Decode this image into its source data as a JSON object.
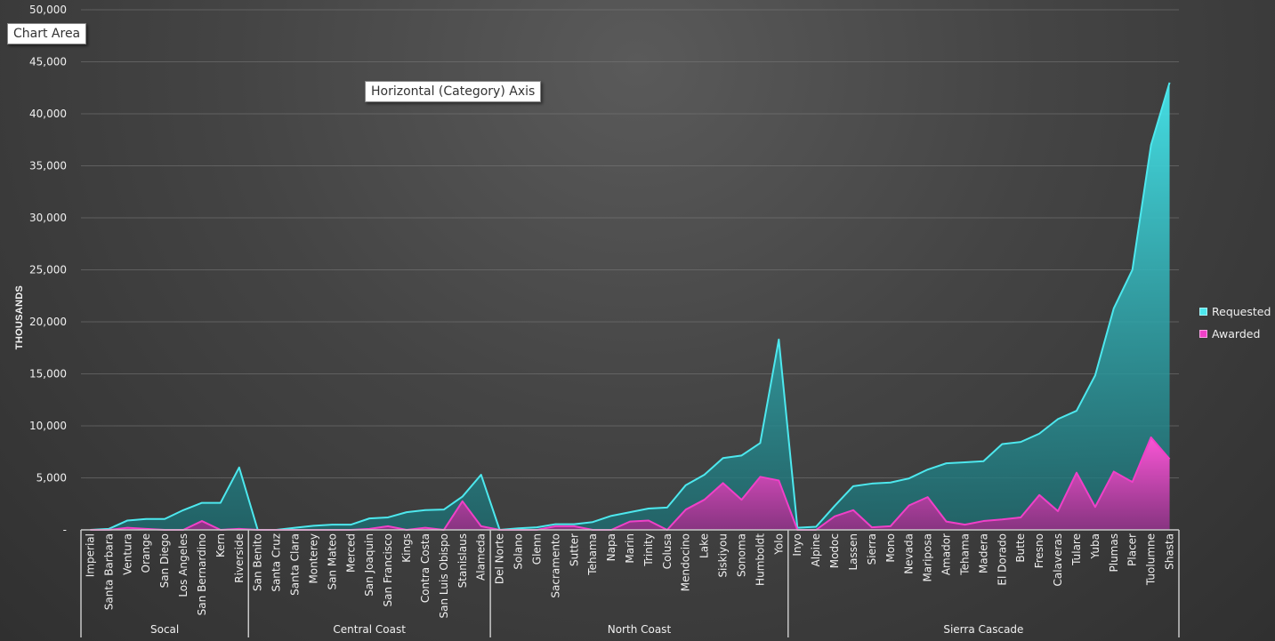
{
  "chart_data": {
    "type": "area",
    "ylabel": "THOUSANDS",
    "ylim": [
      0,
      50000
    ],
    "yticks": [
      0,
      5000,
      10000,
      15000,
      20000,
      25000,
      30000,
      35000,
      40000,
      45000,
      50000
    ],
    "ytick_labels": [
      "-",
      "5,000",
      "10,000",
      "15,000",
      "20,000",
      "25,000",
      "30,000",
      "35,000",
      "40,000",
      "45,000",
      "50,000"
    ],
    "grid": true,
    "legend_position": "right",
    "groups": [
      {
        "name": "Socal",
        "categories": [
          "Imperial",
          "Santa Barbara",
          "Ventura",
          "Orange",
          "San Diego",
          "Los Angeles",
          "San Bernardino",
          "Kern",
          "Riverside"
        ]
      },
      {
        "name": "Central Coast",
        "categories": [
          "San Benito",
          "Santa Cruz",
          "Santa Clara",
          "Monterey",
          "San Mateo",
          "Merced",
          "San Joaquin",
          "San Francisco",
          "Kings",
          "Contra Costa",
          "San Luis Obispo",
          "Stanislaus",
          "Alameda"
        ]
      },
      {
        "name": "North Coast",
        "categories": [
          "Del Norte",
          "Solano",
          "Glenn",
          "Sacramento",
          "Sutter",
          "Tehama",
          "Napa",
          "Marin",
          "Trinity",
          "Colusa",
          "Mendocino",
          "Lake",
          "Siskiyou",
          "Sonoma",
          "Humboldt",
          "Yolo"
        ]
      },
      {
        "name": "Sierra Cascade",
        "categories": [
          "Inyo",
          "Alpine",
          "Modoc",
          "Lassen",
          "Sierra",
          "Mono",
          "Nevada",
          "Mariposa",
          "Amador",
          "Tehama",
          "Madera",
          "El Dorado",
          "Butte",
          "Fresno",
          "Calaveras",
          "Tulare",
          "Yuba",
          "Plumas",
          "Placer",
          "Tuolumne",
          "Shasta"
        ]
      }
    ],
    "series": [
      {
        "name": "Requested",
        "color": "#4de8ee",
        "values": [
          0,
          100,
          900,
          1050,
          1050,
          1900,
          2600,
          2600,
          6000,
          0,
          0,
          200,
          400,
          500,
          500,
          1100,
          1200,
          1700,
          1900,
          1950,
          3200,
          5300,
          0,
          150,
          250,
          550,
          550,
          750,
          1350,
          1700,
          2050,
          2150,
          4300,
          5300,
          6900,
          7150,
          8350,
          18300,
          200,
          300,
          2300,
          4200,
          4450,
          4550,
          4950,
          5800,
          6400,
          6500,
          6600,
          8250,
          8450,
          9250,
          10650,
          11450,
          14850,
          21300,
          25000,
          37000,
          43000
        ]
      },
      {
        "name": "Awarded",
        "color": "#f040c8",
        "values": [
          0,
          0,
          200,
          100,
          0,
          0,
          850,
          0,
          100,
          0,
          0,
          0,
          0,
          0,
          0,
          100,
          350,
          0,
          200,
          0,
          2750,
          350,
          0,
          0,
          0,
          350,
          350,
          0,
          0,
          800,
          900,
          0,
          1950,
          2900,
          4500,
          2900,
          5100,
          4750,
          0,
          0,
          1300,
          1900,
          250,
          350,
          2350,
          3150,
          800,
          500,
          850,
          1000,
          1200,
          3350,
          1800,
          5500,
          2200,
          5600,
          4600,
          8900,
          6800
        ]
      }
    ]
  },
  "tooltips": {
    "chart_area": "Chart Area",
    "horizontal_axis": "Horizontal (Category) Axis"
  }
}
